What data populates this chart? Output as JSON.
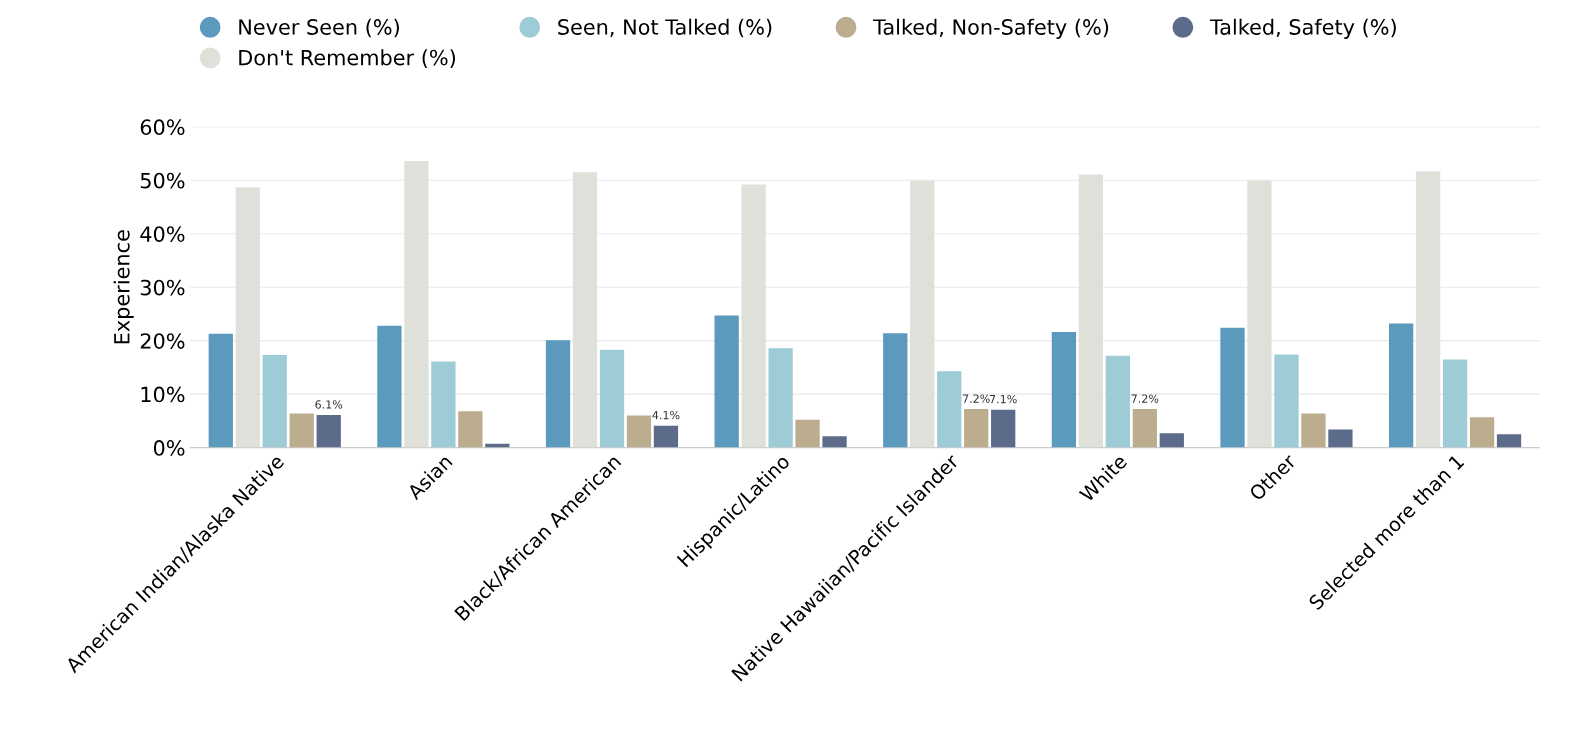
{
  "chart_data": {
    "type": "bar",
    "ylabel": "Experience",
    "categories": [
      "American Indian/Alaska Native",
      "Asian",
      "Black/African American",
      "Hispanic/Latino",
      "Native Hawaiian/Pacific Islander",
      "White",
      "Other",
      "Selected more than 1"
    ],
    "series": [
      {
        "name": "Never Seen (%)",
        "color": "#5b9abd",
        "values": [
          21.3,
          22.8,
          20.1,
          24.7,
          21.4,
          21.6,
          22.4,
          23.2
        ]
      },
      {
        "name": "Don't Remember (%)",
        "color": "#e0e0da",
        "values": [
          48.7,
          53.6,
          51.5,
          49.2,
          49.9,
          51.1,
          49.9,
          51.7
        ]
      },
      {
        "name": "Seen, Not Talked (%)",
        "color": "#9dcbd6",
        "values": [
          17.3,
          16.1,
          18.3,
          18.6,
          14.3,
          17.2,
          17.4,
          16.5
        ]
      },
      {
        "name": "Talked, Non-Safety (%)",
        "color": "#bdad8f",
        "values": [
          6.4,
          6.8,
          6.0,
          5.2,
          7.2,
          7.2,
          6.4,
          5.7
        ],
        "value_labels": [
          null,
          null,
          null,
          null,
          "7.2%",
          "7.2%",
          null,
          null
        ]
      },
      {
        "name": "Talked, Safety (%)",
        "color": "#5d6b8b",
        "values": [
          6.1,
          0.7,
          4.1,
          2.1,
          7.1,
          2.7,
          3.4,
          2.5
        ],
        "value_labels": [
          "6.1%",
          null,
          "4.1%",
          null,
          "7.1%",
          null,
          null,
          null
        ]
      }
    ],
    "ylim": [
      0,
      60
    ],
    "yticks": [
      {
        "value": 0,
        "label": "0%"
      },
      {
        "value": 10,
        "label": "10%"
      },
      {
        "value": 20,
        "label": "20%"
      },
      {
        "value": 30,
        "label": "30%"
      },
      {
        "value": 40,
        "label": "40%"
      },
      {
        "value": 50,
        "label": "50%"
      },
      {
        "value": 60,
        "label": "60%"
      }
    ],
    "grid": "y",
    "legend": "top"
  }
}
